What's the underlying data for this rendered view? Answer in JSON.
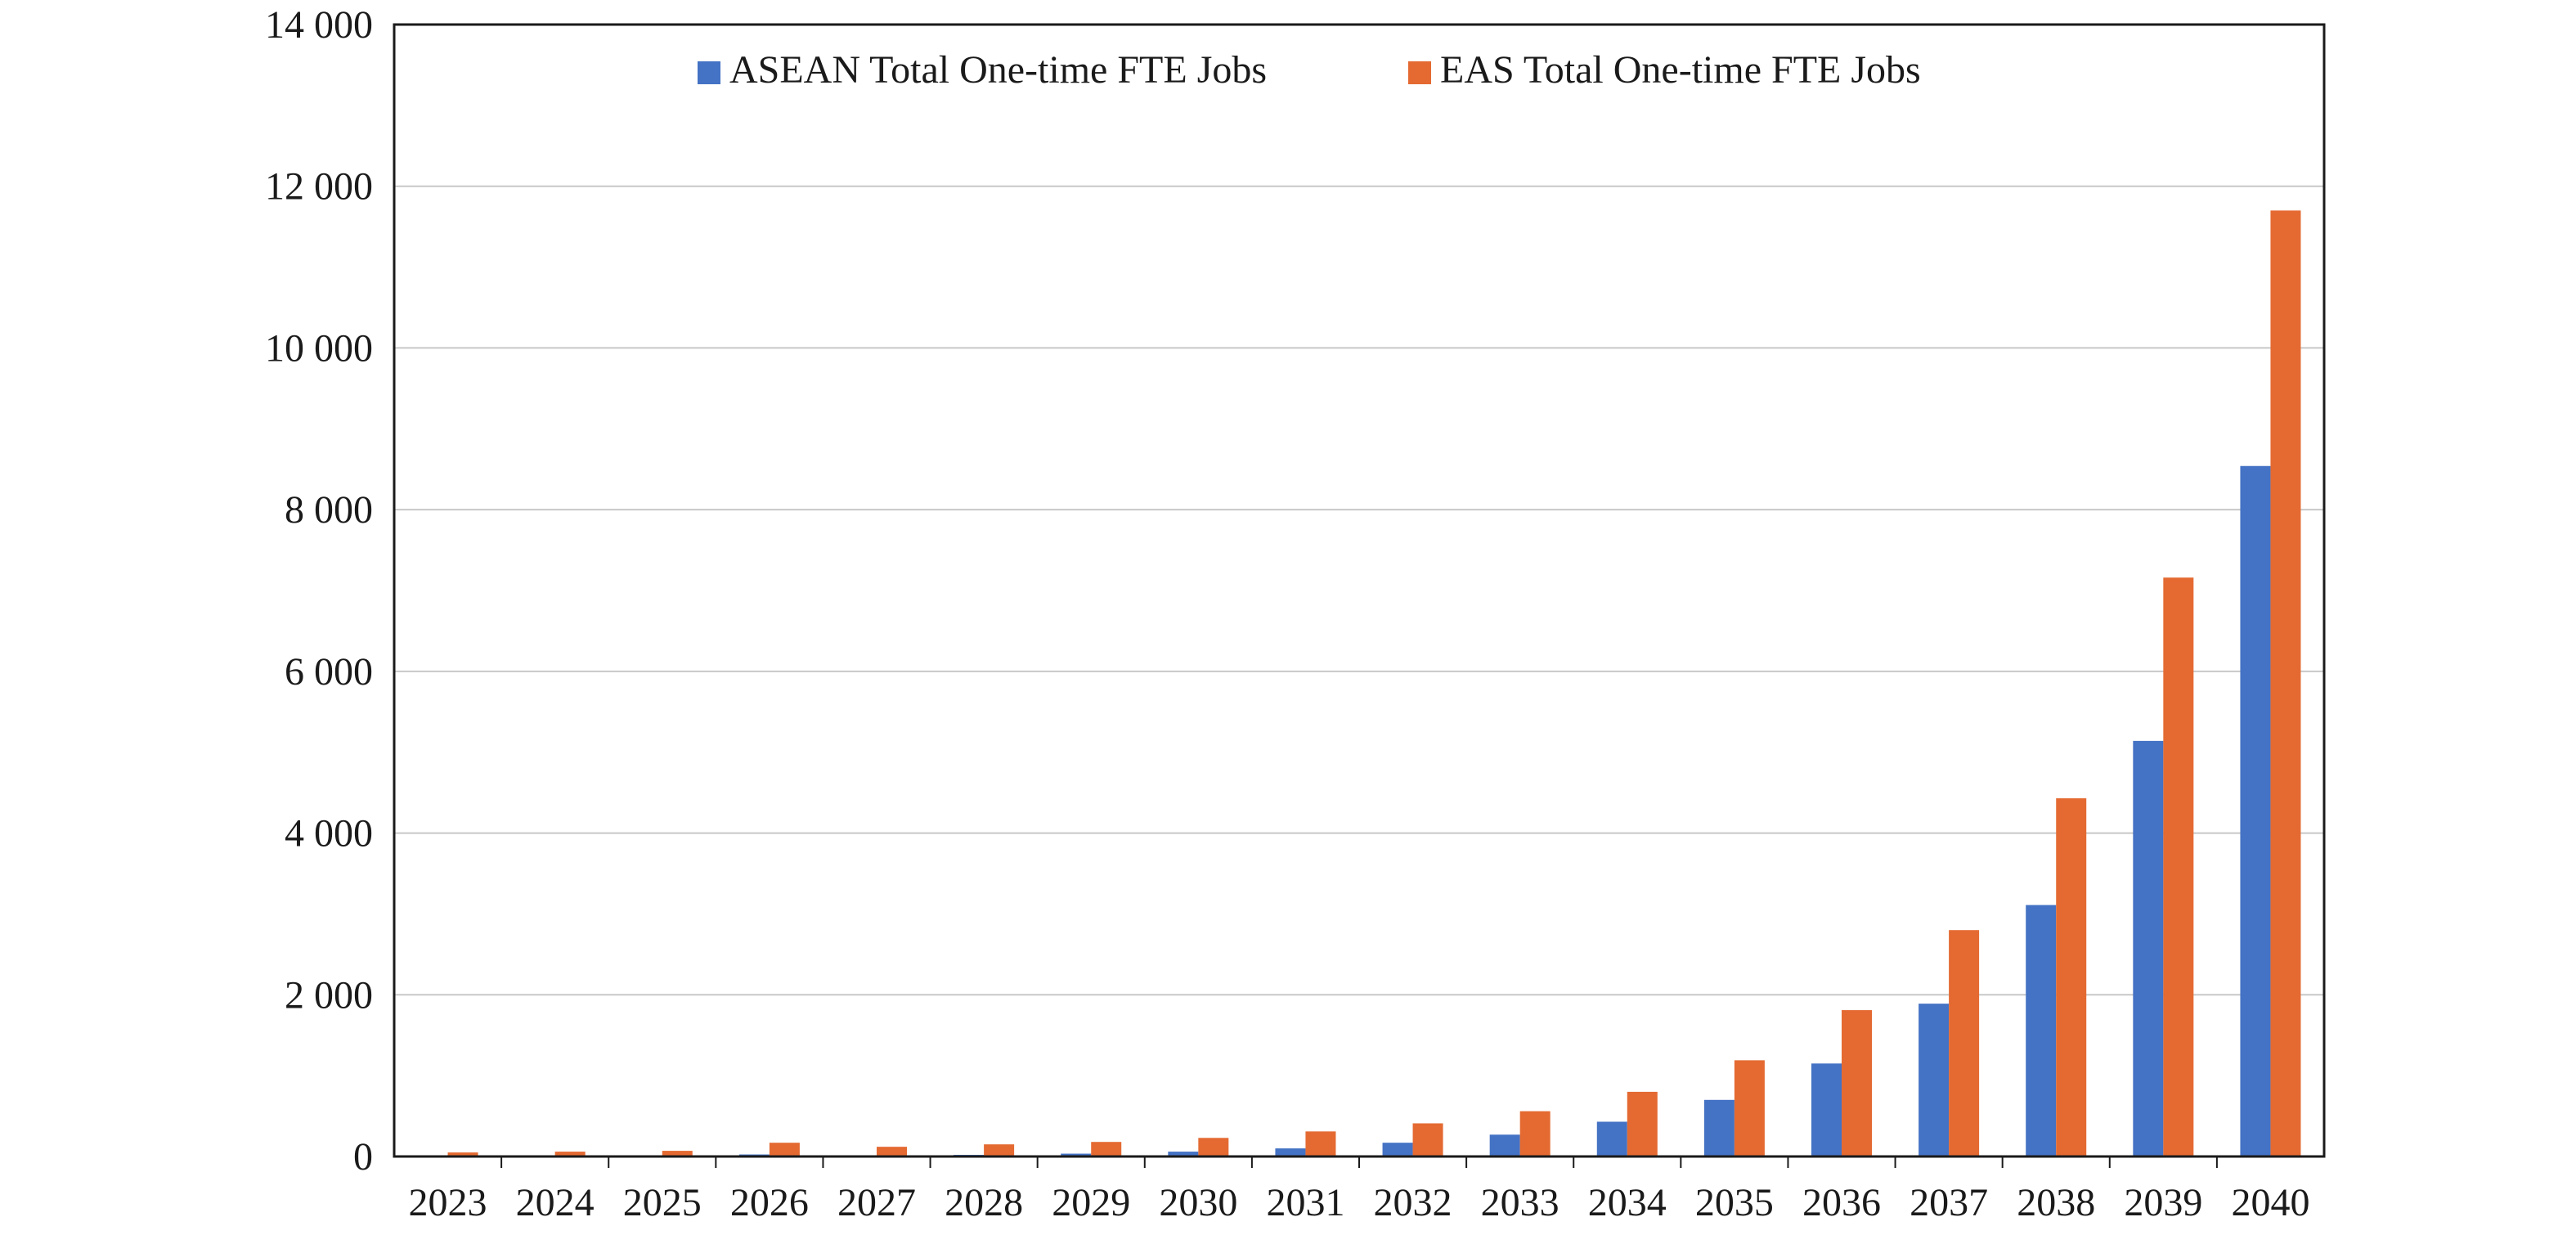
{
  "chart_data": {
    "type": "bar",
    "title": "",
    "xlabel": "",
    "ylabel": "",
    "categories": [
      "2023",
      "2024",
      "2025",
      "2026",
      "2027",
      "2028",
      "2029",
      "2030",
      "2031",
      "2032",
      "2033",
      "2034",
      "2035",
      "2036",
      "2037",
      "2038",
      "2039",
      "2040"
    ],
    "series": [
      {
        "name": "ASEAN Total One-time FTE Jobs",
        "color": "#4472c4",
        "values": [
          5,
          5,
          10,
          25,
          10,
          20,
          35,
          60,
          100,
          170,
          270,
          430,
          700,
          1150,
          1890,
          3110,
          5140,
          8540
        ]
      },
      {
        "name": "EAS Total One-time FTE Jobs",
        "color": "#e46a32",
        "values": [
          50,
          60,
          70,
          170,
          120,
          150,
          180,
          230,
          310,
          410,
          560,
          800,
          1190,
          1810,
          2800,
          4430,
          7160,
          11700
        ]
      }
    ],
    "ylim": [
      0,
      14000
    ],
    "yticks": [
      0,
      2000,
      4000,
      6000,
      8000,
      10000,
      12000,
      14000
    ],
    "ytick_labels": [
      "0",
      "2 000",
      "4 000",
      "6 000",
      "8 000",
      "10 000",
      "12 000",
      "14 000"
    ],
    "grid": true,
    "legend_position": "top-center"
  }
}
